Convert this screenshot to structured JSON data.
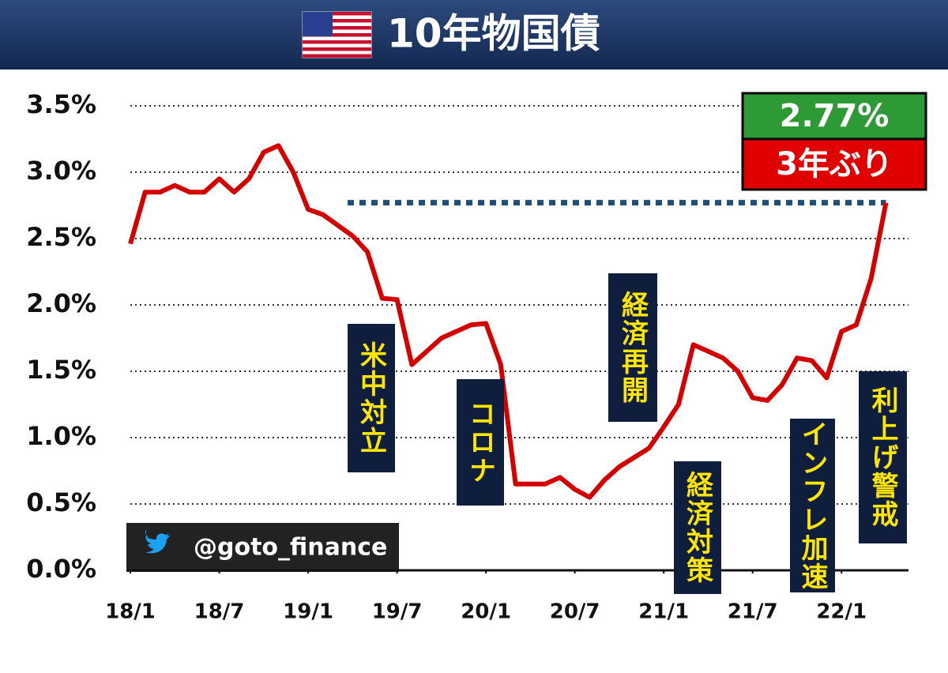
{
  "header": {
    "title": "10年物国債"
  },
  "chart_data": {
    "type": "line",
    "x": [
      "2018-01",
      "2018-02",
      "2018-03",
      "2018-04",
      "2018-05",
      "2018-06",
      "2018-07",
      "2018-08",
      "2018-09",
      "2018-10",
      "2018-11",
      "2018-12",
      "2019-01",
      "2019-02",
      "2019-03",
      "2019-04",
      "2019-05",
      "2019-06",
      "2019-07",
      "2019-08",
      "2019-09",
      "2019-10",
      "2019-11",
      "2019-12",
      "2020-01",
      "2020-02",
      "2020-03",
      "2020-04",
      "2020-05",
      "2020-06",
      "2020-07",
      "2020-08",
      "2020-09",
      "2020-10",
      "2020-11",
      "2020-12",
      "2021-01",
      "2021-02",
      "2021-03",
      "2021-04",
      "2021-05",
      "2021-06",
      "2021-07",
      "2021-08",
      "2021-09",
      "2021-10",
      "2021-11",
      "2021-12",
      "2022-01",
      "2022-02",
      "2022-03",
      "2022-04"
    ],
    "values": [
      2.46,
      2.85,
      2.85,
      2.9,
      2.85,
      2.85,
      2.95,
      2.85,
      2.95,
      3.15,
      3.2,
      3.0,
      2.72,
      2.68,
      2.6,
      2.52,
      2.4,
      2.05,
      2.04,
      1.55,
      1.65,
      1.75,
      1.8,
      1.85,
      1.86,
      1.55,
      0.65,
      0.65,
      0.65,
      0.7,
      0.61,
      0.55,
      0.68,
      0.78,
      0.85,
      0.92,
      1.08,
      1.25,
      1.7,
      1.65,
      1.6,
      1.5,
      1.3,
      1.28,
      1.4,
      1.6,
      1.58,
      1.45,
      1.8,
      1.85,
      2.2,
      2.77
    ],
    "color": "#d40000",
    "xlim": [
      "2018-01",
      "2022-06"
    ],
    "xticks": [
      {
        "value": "2018-01",
        "label": "18/1"
      },
      {
        "value": "2018-07",
        "label": "18/7"
      },
      {
        "value": "2019-01",
        "label": "19/1"
      },
      {
        "value": "2019-07",
        "label": "19/7"
      },
      {
        "value": "2020-01",
        "label": "20/1"
      },
      {
        "value": "2020-07",
        "label": "20/7"
      },
      {
        "value": "2021-01",
        "label": "21/1"
      },
      {
        "value": "2021-07",
        "label": "21/7"
      },
      {
        "value": "2022-01",
        "label": "22/1"
      }
    ],
    "ylim": [
      0,
      3.5
    ],
    "yticks": [
      {
        "value": 0,
        "label": "0.0%"
      },
      {
        "value": 0.5,
        "label": "0.5%"
      },
      {
        "value": 1,
        "label": "1.0%"
      },
      {
        "value": 1.5,
        "label": "1.5%"
      },
      {
        "value": 2,
        "label": "2.0%"
      },
      {
        "value": 2.5,
        "label": "2.5%"
      },
      {
        "value": 3,
        "label": "3.0%"
      },
      {
        "value": 3.5,
        "label": "3.5%"
      }
    ],
    "grid": true,
    "badge": {
      "value": 2.77,
      "label": "2.77%",
      "note": "3年ぶり"
    },
    "annotations": [
      "米中対立",
      "コロナ",
      "経済再開",
      "経済対策",
      "インフレ加速",
      "利上げ警戒"
    ],
    "credit": "@goto_finance"
  }
}
